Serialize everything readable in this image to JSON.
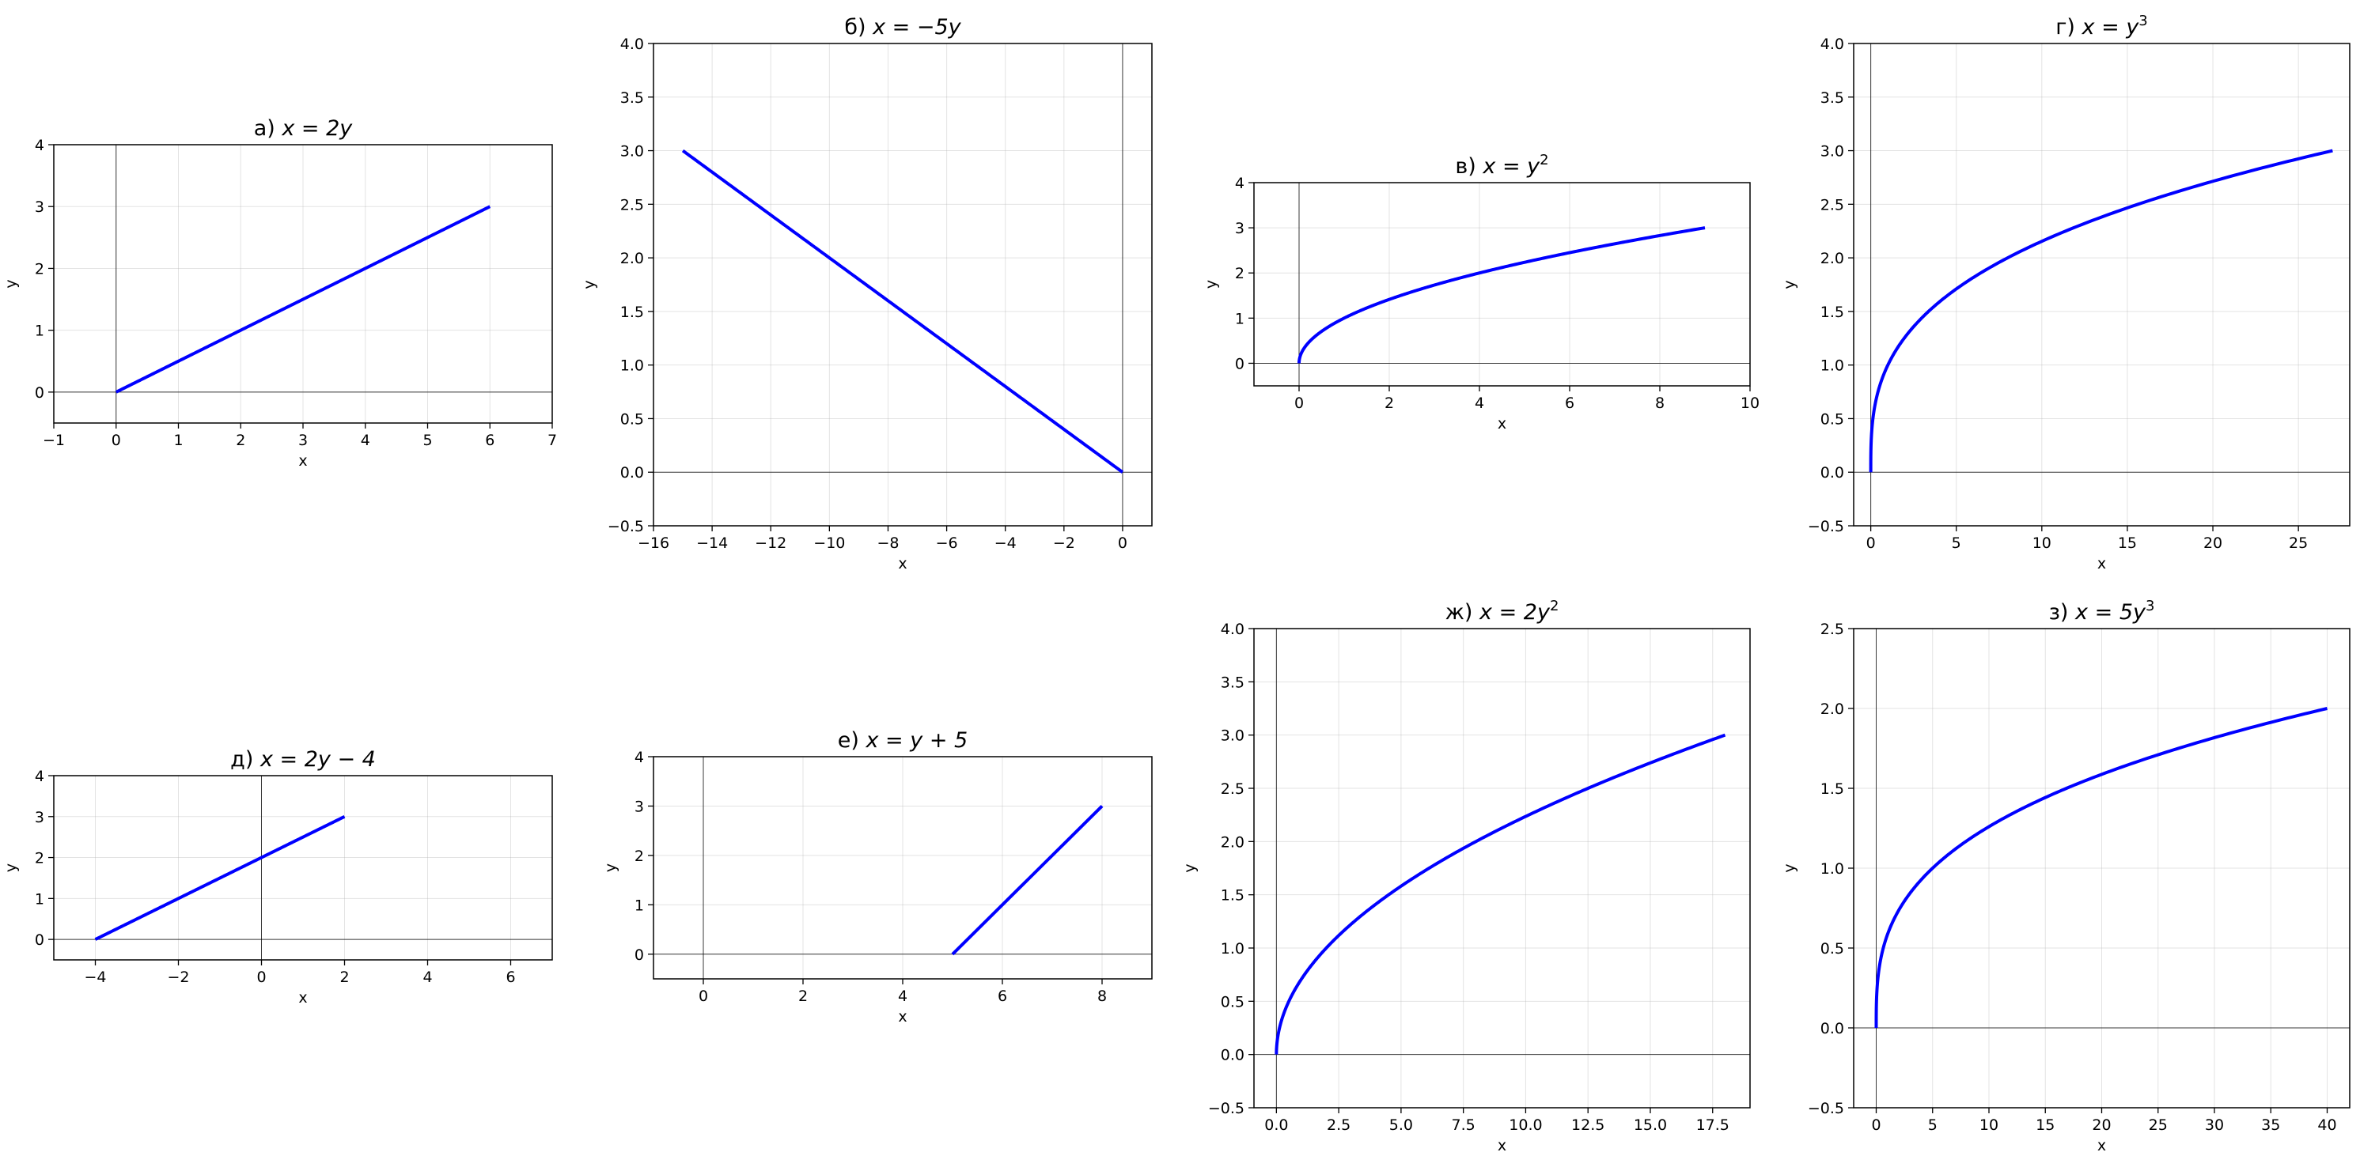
{
  "chart_data": [
    {
      "type": "line",
      "title_prefix": "а)",
      "title_math": "x = 2y",
      "xlabel": "x",
      "ylabel": "y",
      "xlim": [
        -1,
        7
      ],
      "ylim": [
        -0.5,
        4
      ],
      "xticks": [
        -1,
        0,
        1,
        2,
        3,
        4,
        5,
        6,
        7
      ],
      "yticks": [
        0,
        1,
        2,
        3,
        4
      ],
      "grid": true,
      "equation": {
        "a": 2,
        "p": 1,
        "b": 0
      },
      "y_range": [
        0,
        3
      ],
      "series": [
        {
          "color": "#0000ff",
          "x": [
            0,
            6
          ],
          "y": [
            0,
            3
          ]
        }
      ]
    },
    {
      "type": "line",
      "title_prefix": "б)",
      "title_math": "x = −5y",
      "xlabel": "x",
      "ylabel": "y",
      "xlim": [
        -16,
        1
      ],
      "ylim": [
        -0.5,
        4
      ],
      "xticks": [
        -16,
        -14,
        -12,
        -10,
        -8,
        -6,
        -4,
        -2,
        0
      ],
      "yticks": [
        -0.5,
        0.0,
        0.5,
        1.0,
        1.5,
        2.0,
        2.5,
        3.0,
        3.5,
        4.0
      ],
      "ytick_decimals": 1,
      "grid": true,
      "equation": {
        "a": -5,
        "p": 1,
        "b": 0
      },
      "y_range": [
        0,
        3
      ],
      "series": [
        {
          "color": "#0000ff",
          "x": [
            -15,
            0
          ],
          "y": [
            3,
            0
          ]
        }
      ]
    },
    {
      "type": "line",
      "title_prefix": "в)",
      "title_math": "x = y",
      "title_exp": "2",
      "xlabel": "x",
      "ylabel": "y",
      "xlim": [
        -1,
        10
      ],
      "ylim": [
        -0.5,
        4
      ],
      "xticks": [
        0,
        2,
        4,
        6,
        8,
        10
      ],
      "yticks": [
        0,
        1,
        2,
        3,
        4
      ],
      "grid": true,
      "equation": {
        "a": 1,
        "p": 2,
        "b": 0
      },
      "y_range": [
        0,
        3
      ],
      "series": [
        {
          "color": "#0000ff",
          "x": [
            0,
            9
          ],
          "y": [
            0,
            3
          ]
        }
      ]
    },
    {
      "type": "line",
      "title_prefix": "г)",
      "title_math": "x = y",
      "title_exp": "3",
      "xlabel": "x",
      "ylabel": "y",
      "xlim": [
        -1,
        28
      ],
      "ylim": [
        -0.5,
        4
      ],
      "xticks": [
        0,
        5,
        10,
        15,
        20,
        25
      ],
      "yticks": [
        -0.5,
        0.0,
        0.5,
        1.0,
        1.5,
        2.0,
        2.5,
        3.0,
        3.5,
        4.0
      ],
      "ytick_decimals": 1,
      "grid": true,
      "equation": {
        "a": 1,
        "p": 3,
        "b": 0
      },
      "y_range": [
        0,
        3
      ],
      "series": [
        {
          "color": "#0000ff",
          "x": [
            0,
            27
          ],
          "y": [
            0,
            3
          ]
        }
      ]
    },
    {
      "type": "line",
      "title_prefix": "д)",
      "title_math": "x = 2y − 4",
      "xlabel": "x",
      "ylabel": "y",
      "xlim": [
        -5,
        7
      ],
      "ylim": [
        -0.5,
        4
      ],
      "xticks": [
        -4,
        -2,
        0,
        2,
        4,
        6
      ],
      "yticks": [
        0,
        1,
        2,
        3,
        4
      ],
      "grid": true,
      "equation": {
        "a": 2,
        "p": 1,
        "b": -4
      },
      "y_range": [
        0,
        3
      ],
      "series": [
        {
          "color": "#0000ff",
          "x": [
            -4,
            2
          ],
          "y": [
            0,
            3
          ]
        }
      ]
    },
    {
      "type": "line",
      "title_prefix": "е)",
      "title_math": "x = y + 5",
      "xlabel": "x",
      "ylabel": "y",
      "xlim": [
        -1,
        9
      ],
      "ylim": [
        -0.5,
        4
      ],
      "xticks": [
        0,
        2,
        4,
        6,
        8
      ],
      "yticks": [
        0,
        1,
        2,
        3,
        4
      ],
      "grid": true,
      "equation": {
        "a": 1,
        "p": 1,
        "b": 5
      },
      "y_range": [
        0,
        3
      ],
      "series": [
        {
          "color": "#0000ff",
          "x": [
            5,
            8
          ],
          "y": [
            0,
            3
          ]
        }
      ]
    },
    {
      "type": "line",
      "title_prefix": "ж)",
      "title_math": "x = 2y",
      "title_exp": "2",
      "xlabel": "x",
      "ylabel": "y",
      "xlim": [
        -0.9,
        19
      ],
      "ylim": [
        -0.5,
        4
      ],
      "xticks": [
        0.0,
        2.5,
        5.0,
        7.5,
        10.0,
        12.5,
        15.0,
        17.5
      ],
      "xtick_decimals": 1,
      "yticks": [
        -0.5,
        0.0,
        0.5,
        1.0,
        1.5,
        2.0,
        2.5,
        3.0,
        3.5,
        4.0
      ],
      "ytick_decimals": 1,
      "grid": true,
      "equation": {
        "a": 2,
        "p": 2,
        "b": 0
      },
      "y_range": [
        0,
        3
      ],
      "series": [
        {
          "color": "#0000ff",
          "x": [
            0,
            18
          ],
          "y": [
            0,
            3
          ]
        }
      ]
    },
    {
      "type": "line",
      "title_prefix": "з)",
      "title_math": "x = 5y",
      "title_exp": "3",
      "xlabel": "x",
      "ylabel": "y",
      "xlim": [
        -2,
        42
      ],
      "ylim": [
        -0.5,
        2.5
      ],
      "xticks": [
        0,
        5,
        10,
        15,
        20,
        25,
        30,
        35,
        40
      ],
      "yticks": [
        -0.5,
        0.0,
        0.5,
        1.0,
        1.5,
        2.0,
        2.5
      ],
      "ytick_decimals": 1,
      "grid": true,
      "equation": {
        "a": 5,
        "p": 3,
        "b": 0
      },
      "y_range": [
        0,
        2
      ],
      "series": [
        {
          "color": "#0000ff",
          "x": [
            0,
            40
          ],
          "y": [
            0,
            2
          ]
        }
      ]
    }
  ]
}
